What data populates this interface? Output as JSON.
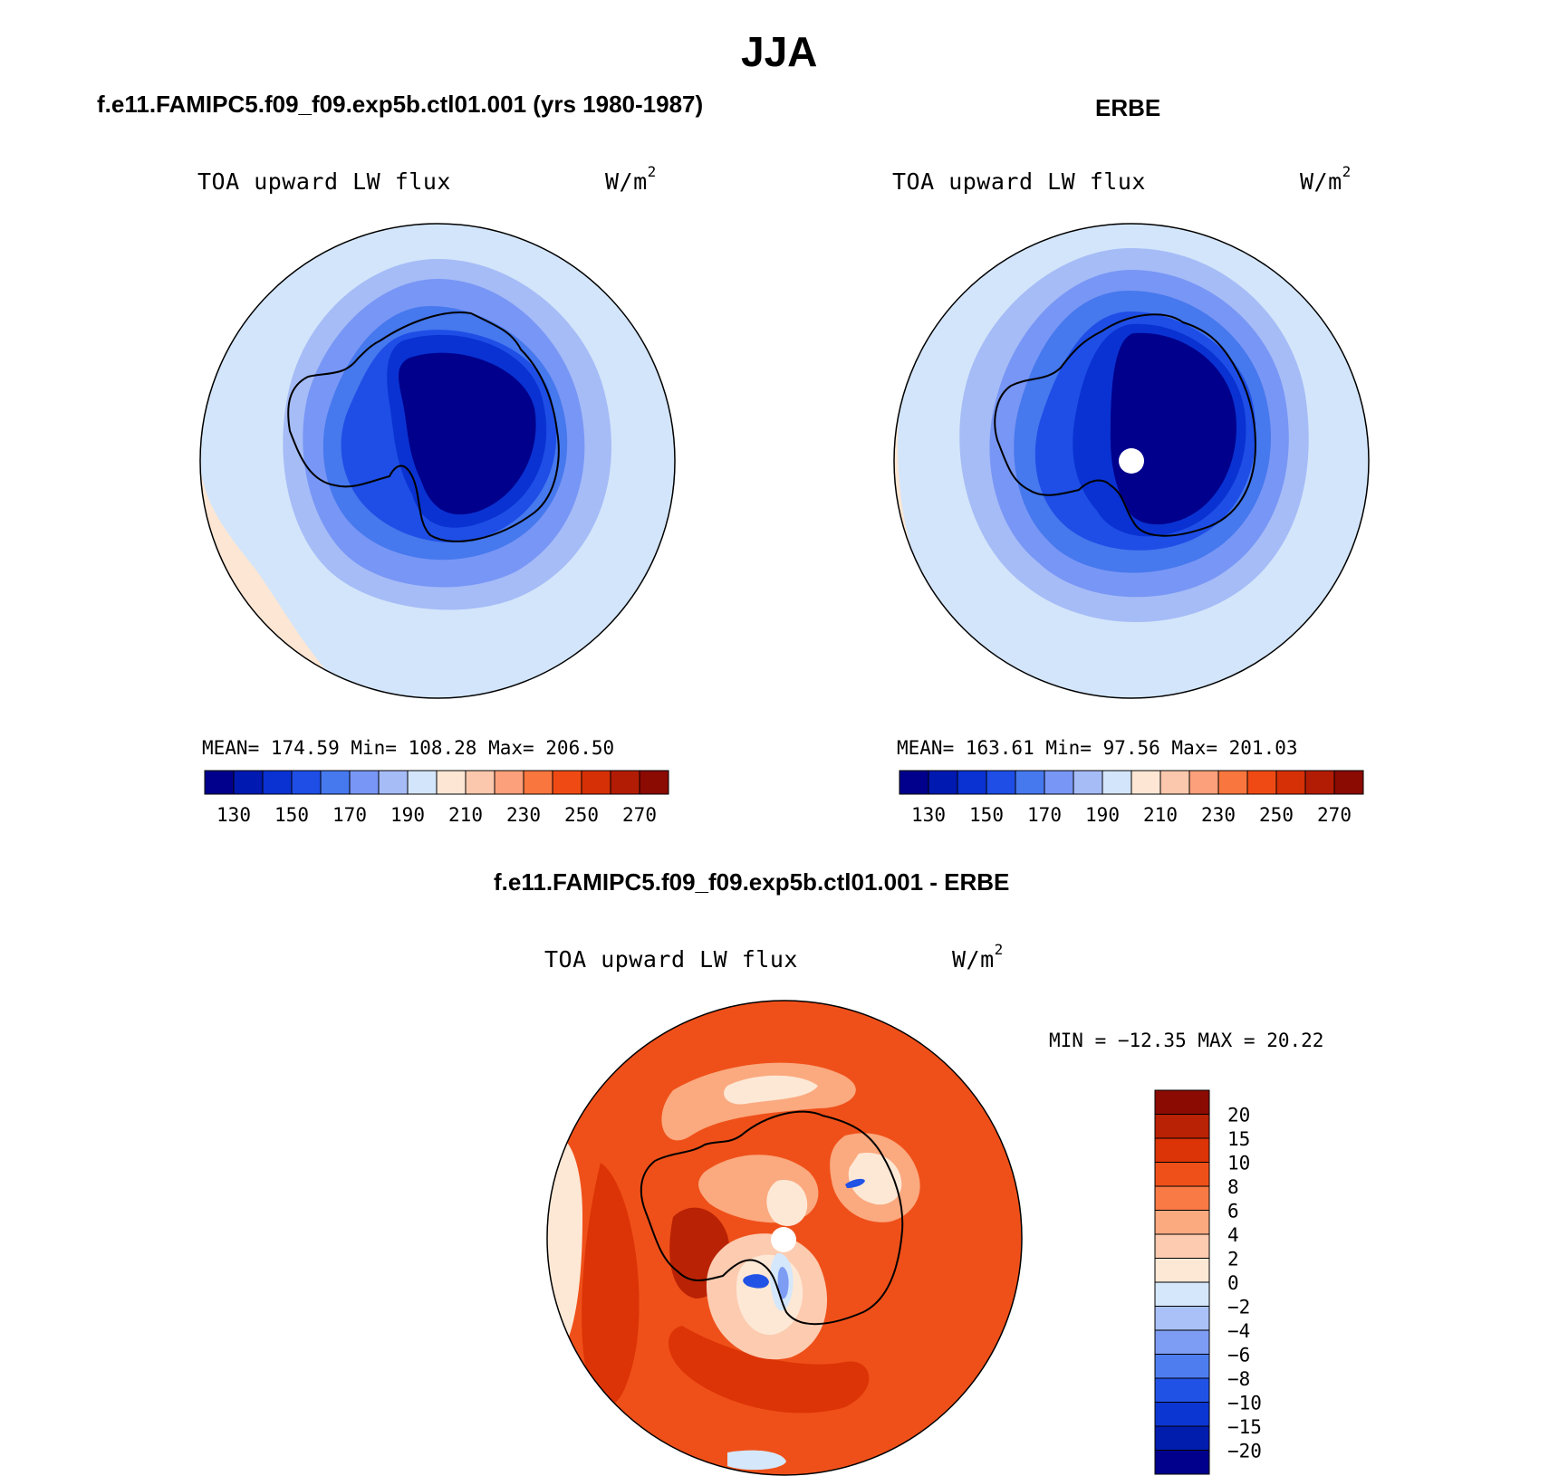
{
  "season_title": "JJA",
  "colors": {
    "abs_scale": [
      "#00008c",
      "#0019b0",
      "#0a32d2",
      "#1e4ee6",
      "#4678ee",
      "#7896f5",
      "#a6bcf7",
      "#d3e5fa",
      "#fde6d3",
      "#fcc8ad",
      "#fba07a",
      "#f9763e",
      "#ef4a14",
      "#d63006",
      "#b31c04",
      "#8b0a02"
    ],
    "diff_scale": [
      "#00008c",
      "#001dae",
      "#0c36d2",
      "#2152e6",
      "#4d7def",
      "#7d9cf4",
      "#a9c1f7",
      "#d5e7fb",
      "#fde8d5",
      "#fccbb0",
      "#fba97f",
      "#f97a45",
      "#ef5019",
      "#dc3406",
      "#b92204",
      "#8b0a02"
    ]
  },
  "panels": [
    {
      "heading": "f.e11.FAMIPC5.f09_f09.exp5b.ctl01.001 (yrs 1980-1987)",
      "variable": "TOA upward LW flux",
      "units_base": "W/m",
      "units_exp": "2",
      "stats_line": "MEAN= 174.59   Min= 108.28   Max= 206.50"
    },
    {
      "heading": "ERBE",
      "variable": "TOA upward LW flux",
      "units_base": "W/m",
      "units_exp": "2",
      "stats_line": "MEAN= 163.61   Min=  97.56   Max= 201.03"
    },
    {
      "heading": "f.e11.FAMIPC5.f09_f09.exp5b.ctl01.001 - ERBE",
      "variable": "TOA upward LW flux",
      "units_base": "W/m",
      "units_exp": "2",
      "stats_line": "MIN = −12.35 MAX =  20.22"
    }
  ],
  "chart_data": [
    {
      "type": "heatmap",
      "title": "f.e11.FAMIPC5.f09_f09.exp5b.ctl01.001 (yrs 1980-1987)",
      "projection": "south-polar stereographic",
      "variable": "TOA upward LW flux",
      "units": "W/m2",
      "mean": 174.59,
      "min": 108.28,
      "max": 206.5,
      "colorbar": {
        "orientation": "horizontal",
        "levels": [
          130,
          150,
          170,
          190,
          210,
          230,
          250,
          270
        ],
        "tick_labels": [
          "130",
          "150",
          "170",
          "190",
          "210",
          "230",
          "250",
          "270"
        ]
      }
    },
    {
      "type": "heatmap",
      "title": "ERBE",
      "projection": "south-polar stereographic",
      "variable": "TOA upward LW flux",
      "units": "W/m2",
      "mean": 163.61,
      "min": 97.56,
      "max": 201.03,
      "colorbar": {
        "orientation": "horizontal",
        "levels": [
          130,
          150,
          170,
          190,
          210,
          230,
          250,
          270
        ],
        "tick_labels": [
          "130",
          "150",
          "170",
          "190",
          "210",
          "230",
          "250",
          "270"
        ]
      }
    },
    {
      "type": "heatmap",
      "title": "f.e11.FAMIPC5.f09_f09.exp5b.ctl01.001 - ERBE",
      "projection": "south-polar stereographic",
      "variable": "TOA upward LW flux",
      "units": "W/m2",
      "min": -12.35,
      "max": 20.22,
      "colorbar": {
        "orientation": "vertical",
        "levels": [
          20,
          15,
          10,
          8,
          6,
          4,
          2,
          0,
          -2,
          -4,
          -6,
          -8,
          -10,
          -15,
          -20
        ],
        "tick_labels": [
          "20",
          "15",
          "10",
          "8",
          "6",
          "4",
          "2",
          "0",
          "−2",
          "−4",
          "−6",
          "−8",
          "−10",
          "−15",
          "−20"
        ]
      }
    }
  ]
}
